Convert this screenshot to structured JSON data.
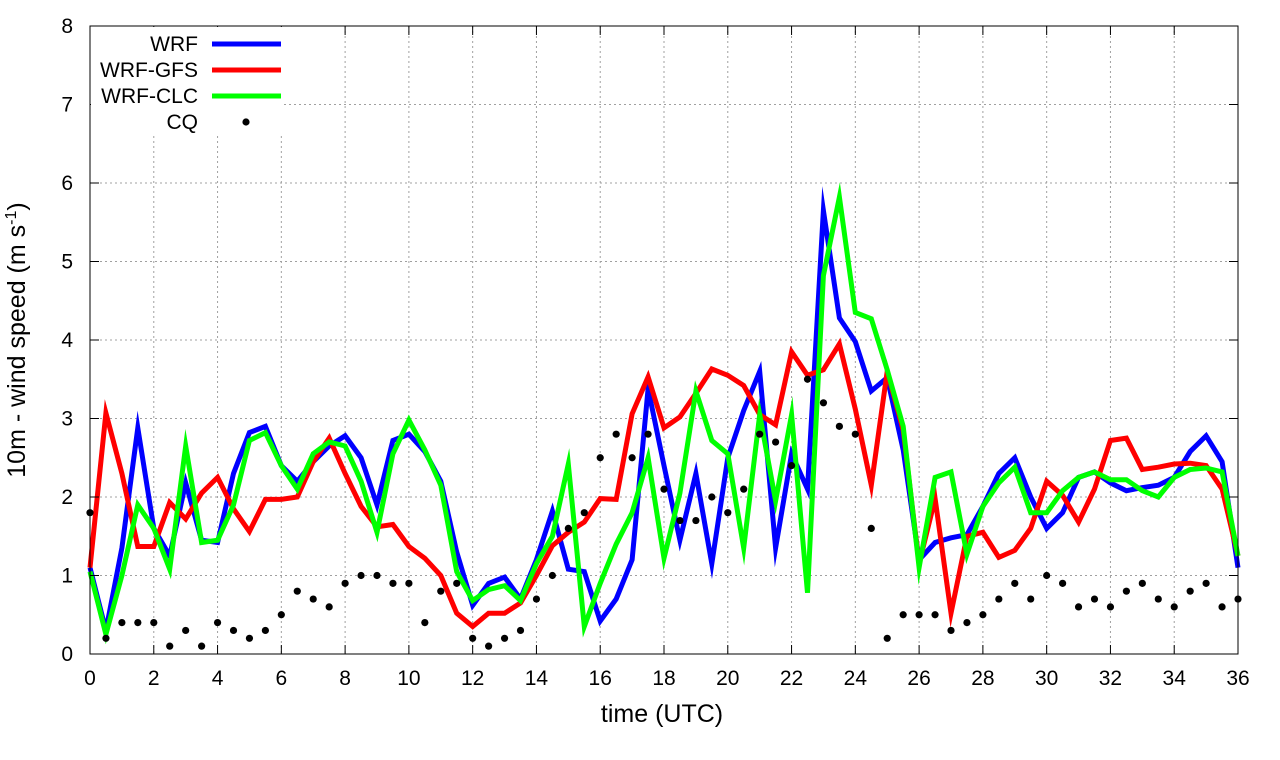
{
  "chart_data": {
    "type": "line",
    "xlabel": "time (UTC)",
    "ylabel": {
      "main": "10m - wind speed  (m s",
      "sup": "-1",
      "close": ")"
    },
    "xlim": [
      0,
      36
    ],
    "ylim": [
      0,
      8
    ],
    "xticks": [
      0,
      2,
      4,
      6,
      8,
      10,
      12,
      14,
      16,
      18,
      20,
      22,
      24,
      26,
      28,
      30,
      32,
      34,
      36
    ],
    "yticks": [
      0,
      1,
      2,
      3,
      4,
      5,
      6,
      7,
      8
    ],
    "grid": true,
    "legend_position": "top-left",
    "x": [
      0,
      0.5,
      1,
      1.5,
      2,
      2.5,
      3,
      3.5,
      4,
      4.5,
      5,
      5.5,
      6,
      6.5,
      7,
      7.5,
      8,
      8.5,
      9,
      9.5,
      10,
      10.5,
      11,
      11.5,
      12,
      12.5,
      13,
      13.5,
      14,
      14.5,
      15,
      15.5,
      16,
      16.5,
      17,
      17.5,
      18,
      18.5,
      19,
      19.5,
      20,
      20.5,
      21,
      21.5,
      22,
      22.5,
      23,
      23.5,
      24,
      24.5,
      25,
      25.5,
      26,
      26.5,
      27,
      27.5,
      28,
      28.5,
      29,
      29.5,
      30,
      30.5,
      31,
      31.5,
      32,
      32.5,
      33,
      33.5,
      34,
      34.5,
      35,
      35.5,
      36
    ],
    "series": [
      {
        "name": "WRF",
        "color": "#0000ff",
        "style": "line",
        "values": [
          1.1,
          0.3,
          1.35,
          2.88,
          1.6,
          1.25,
          2.18,
          1.45,
          1.42,
          2.3,
          2.82,
          2.9,
          2.4,
          2.2,
          2.45,
          2.65,
          2.78,
          2.5,
          1.9,
          2.72,
          2.8,
          2.58,
          2.2,
          1.3,
          0.62,
          0.9,
          0.98,
          0.7,
          1.2,
          1.82,
          1.08,
          1.05,
          0.42,
          0.7,
          1.2,
          3.38,
          2.4,
          1.45,
          2.3,
          1.15,
          2.5,
          3.1,
          3.6,
          1.35,
          2.55,
          2.1,
          5.65,
          4.28,
          3.98,
          3.35,
          3.52,
          2.6,
          1.2,
          1.42,
          1.48,
          1.52,
          1.88,
          2.3,
          2.5,
          2.0,
          1.6,
          1.8,
          2.25,
          2.32,
          2.18,
          2.08,
          2.12,
          2.15,
          2.25,
          2.58,
          2.78,
          2.45,
          1.1
        ]
      },
      {
        "name": "WRF-GFS",
        "color": "#ff0000",
        "style": "line",
        "values": [
          1.1,
          3.07,
          2.3,
          1.37,
          1.37,
          1.93,
          1.72,
          2.05,
          2.25,
          1.85,
          1.56,
          1.97,
          1.97,
          2.0,
          2.45,
          2.75,
          2.3,
          1.88,
          1.62,
          1.65,
          1.37,
          1.22,
          1.0,
          0.52,
          0.35,
          0.52,
          0.52,
          0.65,
          1.0,
          1.38,
          1.55,
          1.68,
          1.98,
          1.97,
          3.06,
          3.53,
          2.88,
          3.02,
          3.32,
          3.63,
          3.55,
          3.42,
          3.05,
          2.92,
          3.85,
          3.55,
          3.62,
          3.95,
          3.12,
          2.15,
          3.6,
          2.85,
          1.15,
          1.98,
          0.52,
          1.5,
          1.55,
          1.23,
          1.32,
          1.6,
          2.2,
          2.02,
          1.68,
          2.1,
          2.72,
          2.75,
          2.35,
          2.38,
          2.42,
          2.43,
          2.4,
          2.1,
          1.25
        ]
      },
      {
        "name": "WRF-CLC",
        "color": "#00ff00",
        "style": "line",
        "values": [
          1.05,
          0.25,
          1.0,
          1.9,
          1.6,
          1.08,
          2.65,
          1.42,
          1.45,
          1.9,
          2.72,
          2.82,
          2.4,
          2.1,
          2.55,
          2.7,
          2.65,
          2.2,
          1.55,
          2.55,
          2.98,
          2.6,
          2.15,
          1.05,
          0.68,
          0.82,
          0.87,
          0.68,
          1.15,
          1.5,
          2.42,
          0.35,
          0.9,
          1.4,
          1.8,
          2.5,
          1.22,
          2.05,
          3.35,
          2.72,
          2.55,
          1.35,
          3.05,
          1.95,
          3.05,
          0.78,
          4.82,
          5.82,
          4.35,
          4.27,
          3.62,
          2.9,
          1.1,
          2.25,
          2.32,
          1.27,
          1.88,
          2.18,
          2.38,
          1.8,
          1.8,
          2.08,
          2.25,
          2.32,
          2.22,
          2.22,
          2.08,
          2.0,
          2.25,
          2.35,
          2.37,
          2.32,
          1.25
        ]
      },
      {
        "name": "CQ",
        "color": "#000000",
        "style": "points",
        "values": [
          1.8,
          0.2,
          0.4,
          0.4,
          0.4,
          0.1,
          0.3,
          0.1,
          0.4,
          0.3,
          0.2,
          0.3,
          0.5,
          0.8,
          0.7,
          0.6,
          0.9,
          1.0,
          1.0,
          0.9,
          0.9,
          0.4,
          0.8,
          0.9,
          0.2,
          0.1,
          0.2,
          0.3,
          0.7,
          1.0,
          1.6,
          1.8,
          2.5,
          2.8,
          2.5,
          2.8,
          2.1,
          1.7,
          1.7,
          2.0,
          1.8,
          2.1,
          2.8,
          2.7,
          2.4,
          3.5,
          3.2,
          2.9,
          2.8,
          1.6,
          0.2,
          0.5,
          0.5,
          0.5,
          0.3,
          0.4,
          0.5,
          0.7,
          0.9,
          0.7,
          1.0,
          0.9,
          0.6,
          0.7,
          0.6,
          0.8,
          0.9,
          0.7,
          0.6,
          0.8,
          0.9,
          0.6,
          0.7
        ]
      }
    ]
  }
}
